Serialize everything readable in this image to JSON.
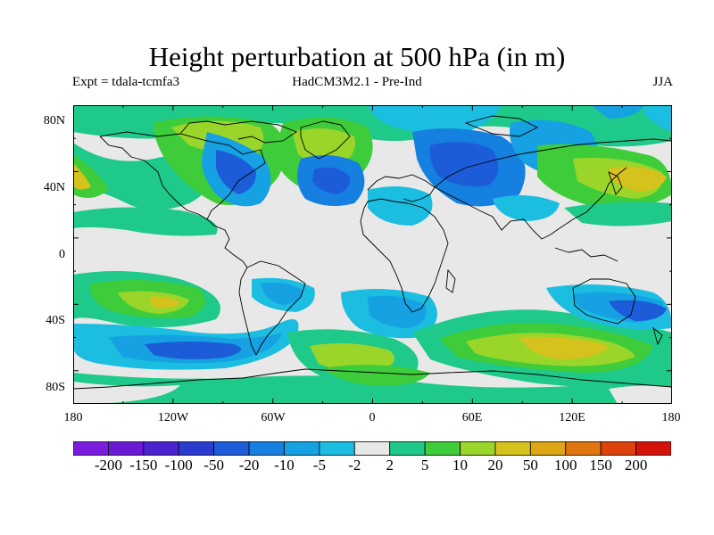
{
  "title": "Height perturbation at 500 hPa (in m)",
  "subtitle_left": "Expt = tdala-tcmfa3",
  "subtitle_center": "HadCM3M2.1 - Pre-Ind",
  "subtitle_right": "JJA",
  "lat_labels": [
    "80N",
    "40N",
    "0",
    "40S",
    "80S"
  ],
  "lon_labels": [
    "180",
    "120W",
    "60W",
    "0",
    "60E",
    "120E",
    "180"
  ],
  "colorbar": {
    "labels": [
      "-200",
      "-150",
      "-100",
      "-50",
      "-20",
      "-10",
      "-5",
      "-2",
      "2",
      "5",
      "10",
      "20",
      "50",
      "100",
      "150",
      "200"
    ],
    "colors": [
      "#7b1be0",
      "#6a19d6",
      "#4a22d0",
      "#2a3ccf",
      "#1d5cd8",
      "#1580e0",
      "#15a1e2",
      "#1bbde0",
      "#e8e8e8",
      "#1ec98a",
      "#3fcc3a",
      "#9ad52a",
      "#d6c21c",
      "#dea515",
      "#df7610",
      "#dc420a",
      "#d4120a"
    ]
  }
}
